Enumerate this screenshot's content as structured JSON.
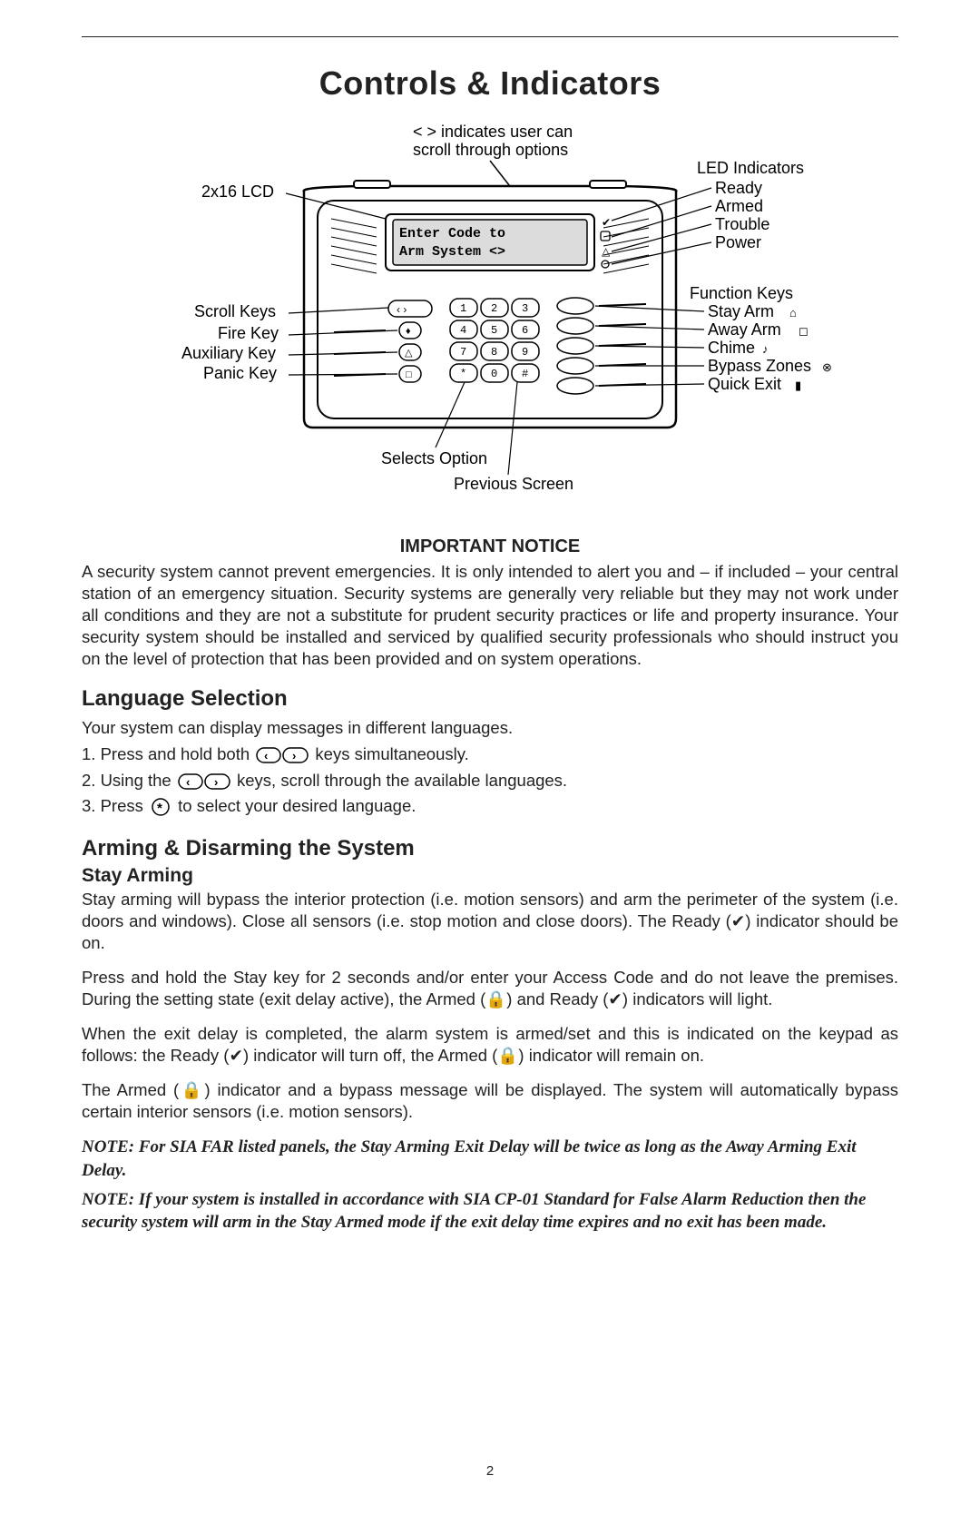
{
  "page_title": "Controls & Indicators",
  "notice_title": "IMPORTANT NOTICE",
  "notice_body": "A security system cannot prevent emergencies. It is only intended to alert you and – if included – your central station of an emergency situation. Security systems are generally very reliable but they may not work under all conditions and they are not a substitute for prudent security practices or life and property insurance. Your security system should be installed and serviced by qualified security professionals who should instruct you on the level of protection that has been provided and on system operations.",
  "language_heading": "Language Selection",
  "language_intro": "Your system can display messages in different languages.",
  "language_step1_a": "1. Press and hold both ",
  "language_step1_b": " keys simultaneously.",
  "language_step2_a": "2. Using the ",
  "language_step2_b": " keys, scroll through the available languages.",
  "language_step3_a": "3. Press ",
  "language_step3_b": " to select your desired language.",
  "arming_heading": "Arming & Disarming the System",
  "stay_heading": "Stay Arming",
  "stay_p1_a": "Stay arming will bypass the interior protection (i.e. motion sensors) and arm the perimeter of the system (i.e. doors and windows). Close all sensors (i.e. stop motion and close doors). The Ready (",
  "stay_p1_b": ") indicator should be on.",
  "stay_p2_a": "Press and hold the Stay key for 2 seconds and/or enter your Access Code and do not leave the premises. During the setting state (exit delay active), the Armed (",
  "stay_p2_b": ") and Ready (",
  "stay_p2_c": ") indicators will light.",
  "stay_p3_a": "When the exit delay is completed, the alarm system is armed/set and this is indicated on the keypad as follows: the Ready (",
  "stay_p3_b": ") indicator will turn off, the Armed (",
  "stay_p3_c": ") indicator will remain on.",
  "stay_p4_a": "The Armed (",
  "stay_p4_b": ") indicator and a bypass message will be displayed. The system will automatically bypass certain interior sensors (i.e. motion sensors).",
  "note1": "NOTE: For SIA FAR listed panels, the Stay Arming Exit Delay will be twice as long as the Away Arming Exit Delay.",
  "note2": "NOTE: If your system is installed in accordance with SIA CP-01 Standard for False Alarm Reduction then the security system will arm in the Stay Armed mode if the exit delay time expires and no exit has been made.",
  "page_number": "2",
  "diagram": {
    "top_caption": "< > indicates user can\nscroll through options",
    "lcd_line1": "Enter Code to",
    "lcd_line2": "Arm System   <>",
    "left_labels": {
      "lcd": "2x16 LCD",
      "scroll": "Scroll Keys",
      "fire": "Fire Key",
      "aux": "Auxiliary Key",
      "panic": "Panic Key"
    },
    "right_led": {
      "heading": "LED  Indicators",
      "ready": "Ready",
      "armed": "Armed",
      "trouble": "Trouble",
      "power": "Power"
    },
    "right_fn": {
      "heading": "Function  Keys",
      "stay": "Stay Arm",
      "away": "Away Arm",
      "chime": "Chime",
      "bypass": "Bypass Zones",
      "quick": "Quick Exit"
    },
    "bottom": {
      "selects": "Selects Option",
      "previous": "Previous Screen"
    },
    "keypad_keys": [
      "1",
      "2",
      "3",
      "4",
      "5",
      "6",
      "7",
      "8",
      "9",
      "*",
      "0",
      "#"
    ],
    "style": {
      "stroke": "#000000",
      "panel_fill": "#ffffff",
      "panel_stroke": "#000000",
      "hatched": "#555555",
      "label_font": "16",
      "label_font_small": "15",
      "lcd_font": "14"
    }
  }
}
